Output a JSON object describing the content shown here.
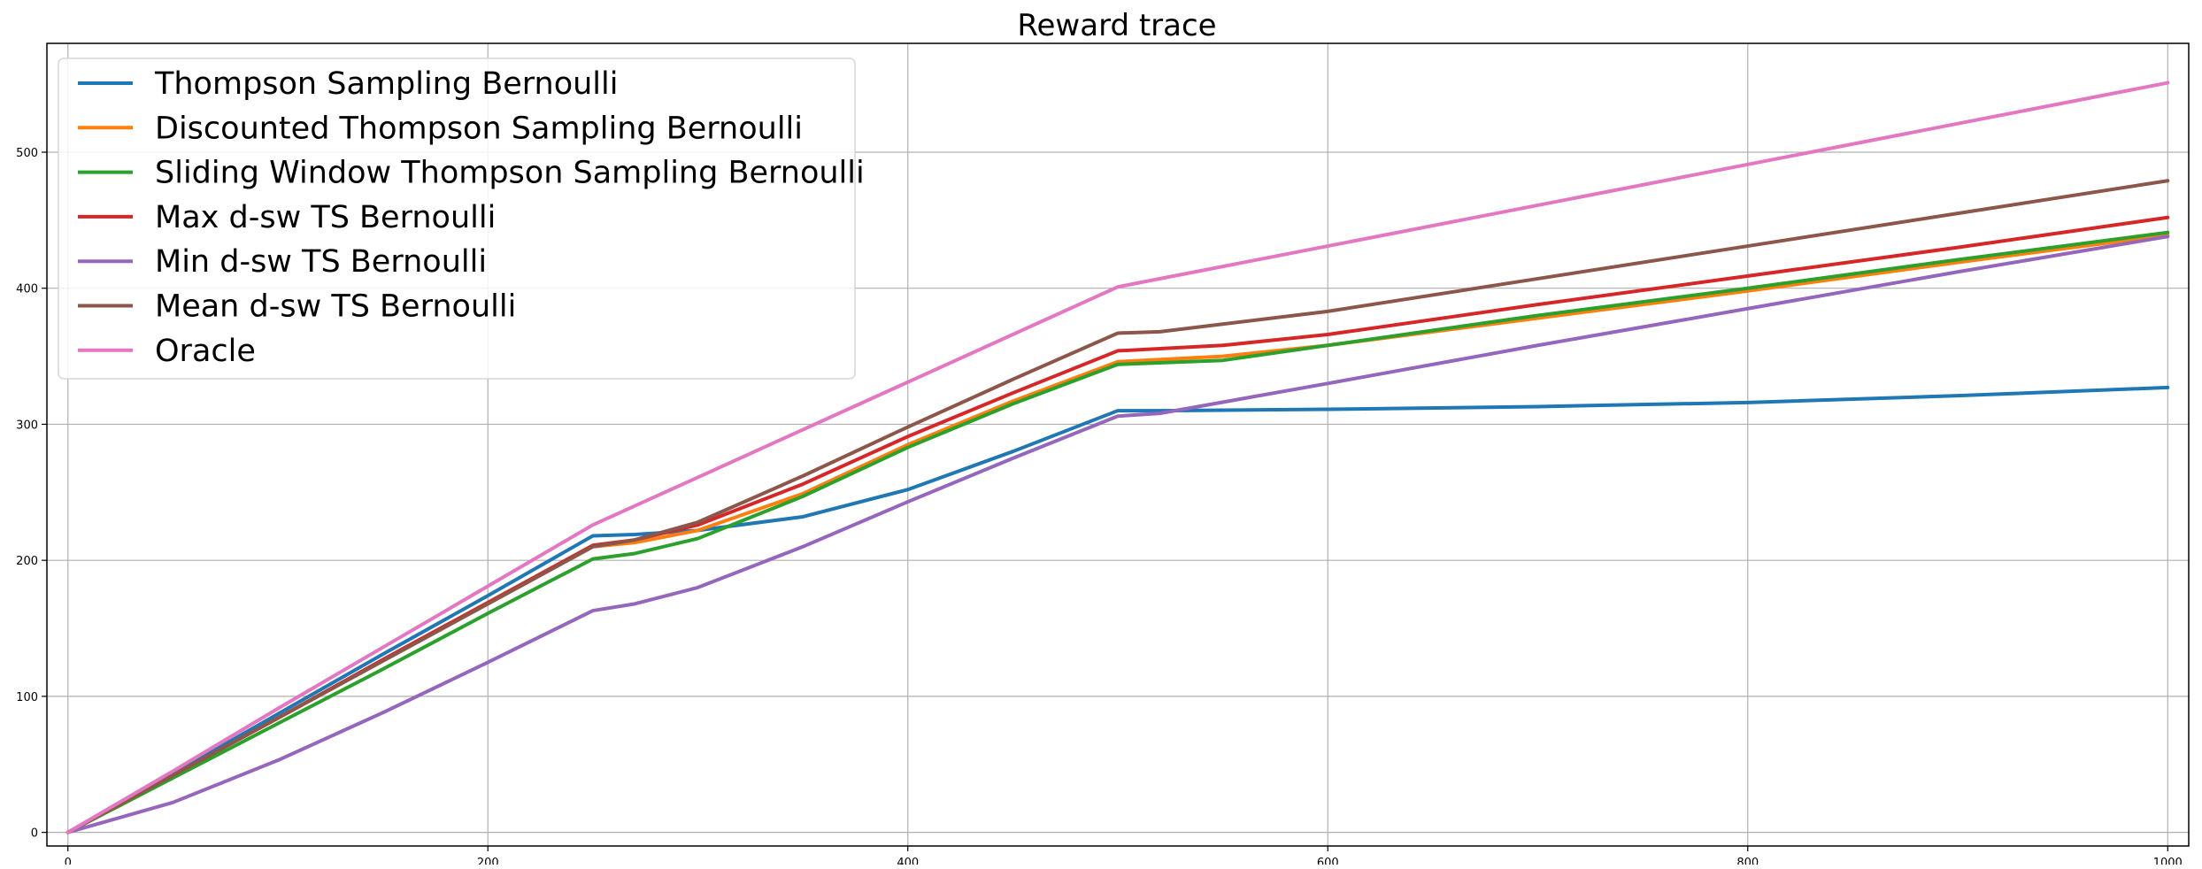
{
  "chart_data": {
    "type": "line",
    "title": "Reward trace",
    "xlabel": "",
    "ylabel": "",
    "xlim": [
      -10,
      1010
    ],
    "ylim": [
      -10,
      580
    ],
    "xticks": [
      0,
      200,
      400,
      600,
      800,
      1000
    ],
    "yticks": [
      0,
      100,
      200,
      300,
      400,
      500
    ],
    "grid": true,
    "legend_position": "top-left",
    "series": [
      {
        "name": "Thompson Sampling Bernoulli",
        "color": "#1f77b4",
        "points": [
          [
            0,
            0
          ],
          [
            50,
            43
          ],
          [
            100,
            87
          ],
          [
            150,
            131
          ],
          [
            200,
            174
          ],
          [
            250,
            218
          ],
          [
            270,
            219
          ],
          [
            300,
            222
          ],
          [
            350,
            232
          ],
          [
            400,
            252
          ],
          [
            450,
            280
          ],
          [
            500,
            310
          ],
          [
            520,
            310
          ],
          [
            600,
            311
          ],
          [
            700,
            313
          ],
          [
            800,
            316
          ],
          [
            900,
            321
          ],
          [
            1000,
            327
          ]
        ]
      },
      {
        "name": "Discounted Thompson Sampling Bernoulli",
        "color": "#ff7f0e",
        "points": [
          [
            0,
            0
          ],
          [
            50,
            42
          ],
          [
            100,
            84
          ],
          [
            150,
            126
          ],
          [
            200,
            168
          ],
          [
            250,
            210
          ],
          [
            270,
            213
          ],
          [
            300,
            222
          ],
          [
            350,
            249
          ],
          [
            400,
            285
          ],
          [
            450,
            317
          ],
          [
            500,
            346
          ],
          [
            550,
            350
          ],
          [
            600,
            358
          ],
          [
            700,
            378
          ],
          [
            800,
            398
          ],
          [
            900,
            419
          ],
          [
            1000,
            439
          ]
        ]
      },
      {
        "name": "Sliding Window Thompson Sampling Bernoulli",
        "color": "#2ca02c",
        "points": [
          [
            0,
            0
          ],
          [
            50,
            40
          ],
          [
            100,
            80
          ],
          [
            150,
            120
          ],
          [
            200,
            161
          ],
          [
            250,
            201
          ],
          [
            270,
            205
          ],
          [
            300,
            216
          ],
          [
            350,
            247
          ],
          [
            400,
            283
          ],
          [
            450,
            315
          ],
          [
            500,
            344
          ],
          [
            550,
            347
          ],
          [
            600,
            358
          ],
          [
            700,
            380
          ],
          [
            800,
            400
          ],
          [
            900,
            421
          ],
          [
            1000,
            441
          ]
        ]
      },
      {
        "name": "Max d-sw TS Bernoulli",
        "color": "#d62728",
        "points": [
          [
            0,
            0
          ],
          [
            50,
            42
          ],
          [
            100,
            84
          ],
          [
            150,
            127
          ],
          [
            200,
            169
          ],
          [
            250,
            211
          ],
          [
            270,
            215
          ],
          [
            300,
            226
          ],
          [
            350,
            256
          ],
          [
            400,
            291
          ],
          [
            450,
            323
          ],
          [
            500,
            354
          ],
          [
            550,
            358
          ],
          [
            600,
            366
          ],
          [
            700,
            388
          ],
          [
            800,
            409
          ],
          [
            900,
            430
          ],
          [
            1000,
            452
          ]
        ]
      },
      {
        "name": "Min d-sw TS Bernoulli",
        "color": "#9467bd",
        "points": [
          [
            0,
            0
          ],
          [
            50,
            22
          ],
          [
            100,
            53
          ],
          [
            150,
            88
          ],
          [
            200,
            125
          ],
          [
            250,
            163
          ],
          [
            270,
            168
          ],
          [
            300,
            180
          ],
          [
            350,
            210
          ],
          [
            400,
            243
          ],
          [
            450,
            275
          ],
          [
            500,
            306
          ],
          [
            520,
            308
          ],
          [
            600,
            330
          ],
          [
            700,
            358
          ],
          [
            800,
            385
          ],
          [
            900,
            412
          ],
          [
            1000,
            438
          ]
        ]
      },
      {
        "name": "Mean d-sw TS Bernoulli",
        "color": "#8c564b",
        "points": [
          [
            0,
            0
          ],
          [
            50,
            42
          ],
          [
            100,
            84
          ],
          [
            150,
            126
          ],
          [
            200,
            168
          ],
          [
            250,
            210
          ],
          [
            270,
            215
          ],
          [
            300,
            228
          ],
          [
            350,
            262
          ],
          [
            400,
            298
          ],
          [
            450,
            333
          ],
          [
            500,
            367
          ],
          [
            520,
            368
          ],
          [
            600,
            383
          ],
          [
            700,
            407
          ],
          [
            800,
            431
          ],
          [
            900,
            455
          ],
          [
            1000,
            479
          ]
        ]
      },
      {
        "name": "Oracle",
        "color": "#e377c2",
        "points": [
          [
            0,
            0
          ],
          [
            50,
            45
          ],
          [
            100,
            91
          ],
          [
            150,
            136
          ],
          [
            200,
            181
          ],
          [
            250,
            226
          ],
          [
            300,
            261
          ],
          [
            350,
            296
          ],
          [
            400,
            331
          ],
          [
            450,
            366
          ],
          [
            500,
            401
          ],
          [
            600,
            431
          ],
          [
            700,
            461
          ],
          [
            800,
            491
          ],
          [
            900,
            521
          ],
          [
            1000,
            551
          ]
        ]
      }
    ]
  }
}
